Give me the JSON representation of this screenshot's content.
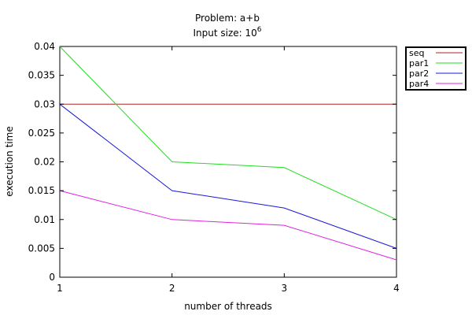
{
  "chart_data": {
    "type": "line",
    "title": "Problem: a+b",
    "subtitle_prefix": "Input size: 10",
    "subtitle_exponent": "6",
    "xlabel": "number of threads",
    "ylabel": "execution time",
    "x": [
      1,
      2,
      3,
      4
    ],
    "xticks": [
      "1",
      "2",
      "3",
      "4"
    ],
    "xlim": [
      1,
      4
    ],
    "yticks": [
      "0",
      "0.005",
      "0.01",
      "0.015",
      "0.02",
      "0.025",
      "0.03",
      "0.035",
      "0.04"
    ],
    "ylim": [
      0,
      0.04
    ],
    "grid": false,
    "legend_position": "outside-right-top",
    "series": [
      {
        "name": "seq",
        "color": "#b22222",
        "values": [
          0.03,
          0.03,
          0.03,
          0.03
        ]
      },
      {
        "name": "par1",
        "color": "#22dd22",
        "values": [
          0.04,
          0.02,
          0.019,
          0.01
        ]
      },
      {
        "name": "par2",
        "color": "#1a1ad6",
        "values": [
          0.03,
          0.015,
          0.012,
          0.005
        ]
      },
      {
        "name": "par4",
        "color": "#e020e0",
        "values": [
          0.015,
          0.01,
          0.009,
          0.003
        ]
      }
    ]
  }
}
